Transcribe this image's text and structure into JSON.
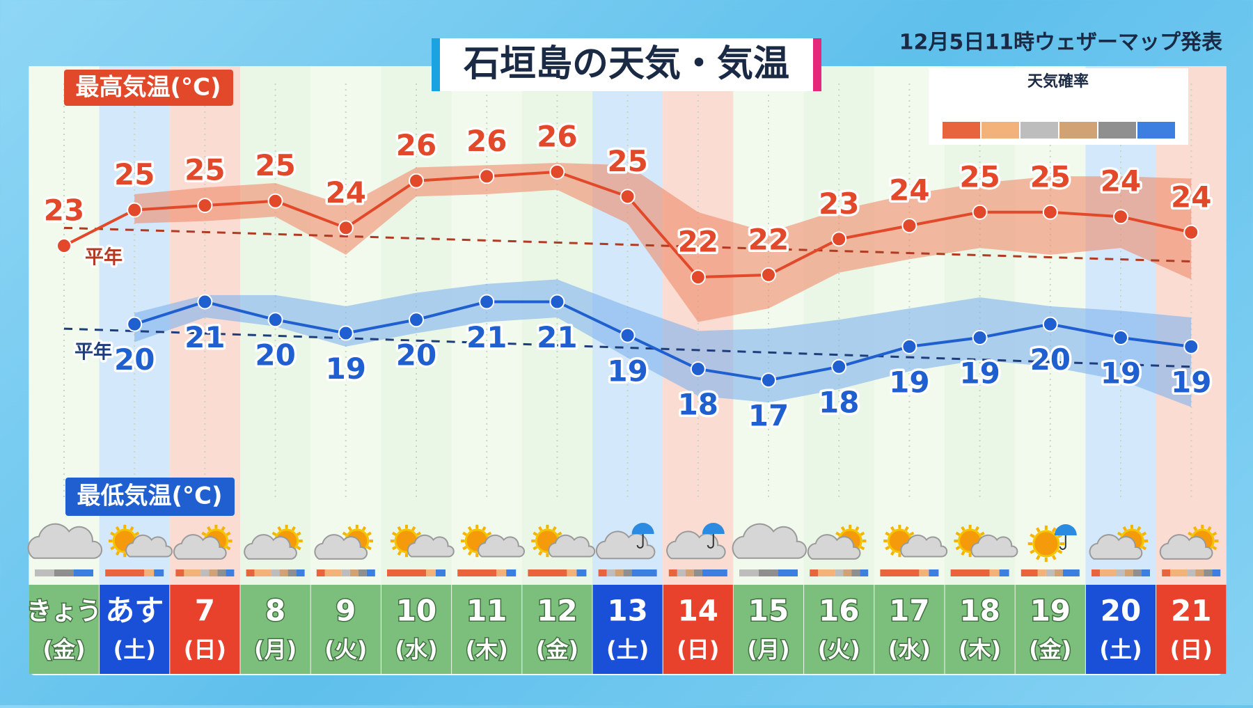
{
  "chart_data": {
    "type": "line",
    "title": "石垣島の天気・気温",
    "issued": "12月5日11時ウェザーマップ発表",
    "categories": [
      "きょう",
      "あす",
      "7",
      "8",
      "9",
      "10",
      "11",
      "12",
      "13",
      "14",
      "15",
      "16",
      "17",
      "18",
      "19",
      "20",
      "21"
    ],
    "weekdays": [
      "(金)",
      "(土)",
      "(日)",
      "(月)",
      "(火)",
      "(水)",
      "(木)",
      "(金)",
      "(土)",
      "(日)",
      "(月)",
      "(火)",
      "(水)",
      "(木)",
      "(金)",
      "(土)",
      "(日)"
    ],
    "ylim": [
      12,
      29
    ],
    "series": [
      {
        "name": "最高気温(°C)",
        "color": "#e2492a",
        "band_color": "#f08a6a",
        "normal_color": "#b03a22",
        "values": [
          23.0,
          24.6,
          24.8,
          25.0,
          23.8,
          25.9,
          26.1,
          26.3,
          25.2,
          21.6,
          21.7,
          23.3,
          23.9,
          24.5,
          24.5,
          24.3,
          23.6
        ],
        "value_labels": [
          "23",
          "25",
          "25",
          "25",
          "24",
          "26",
          "26",
          "26",
          "25",
          "22",
          "22",
          "23",
          "24",
          "25",
          "25",
          "24",
          "24"
        ],
        "band_upper": [
          null,
          25.3,
          25.6,
          25.8,
          24.8,
          26.5,
          26.6,
          26.7,
          26.6,
          24.5,
          23.6,
          24.6,
          25.3,
          25.8,
          26.1,
          26.1,
          26.0
        ],
        "band_lower": [
          null,
          24.0,
          24.1,
          24.3,
          22.6,
          25.2,
          25.3,
          25.5,
          24.0,
          19.6,
          20.2,
          21.8,
          22.4,
          22.9,
          22.6,
          22.9,
          21.5
        ],
        "normal": [
          23.8,
          22.3
        ],
        "normal_label": "平年"
      },
      {
        "name": "最低気温(°C)",
        "color": "#1f5fcf",
        "band_color": "#7fb2ee",
        "normal_color": "#1f3d7a",
        "values": [
          null,
          19.5,
          20.5,
          19.7,
          19.1,
          19.7,
          20.5,
          20.5,
          19.0,
          17.5,
          17.0,
          17.6,
          18.5,
          18.9,
          19.5,
          18.9,
          18.5
        ],
        "value_labels": [
          null,
          "20",
          "21",
          "20",
          "19",
          "20",
          "21",
          "21",
          "19",
          "18",
          "17",
          "18",
          "19",
          "19",
          "20",
          "19",
          "19"
        ],
        "band_upper": [
          null,
          20.0,
          20.8,
          20.8,
          20.3,
          20.9,
          21.3,
          21.5,
          20.3,
          19.2,
          19.3,
          19.7,
          20.2,
          20.7,
          20.3,
          20.1,
          19.8
        ],
        "band_lower": [
          null,
          18.7,
          19.8,
          19.4,
          18.5,
          19.1,
          19.6,
          19.8,
          18.0,
          16.3,
          16.0,
          16.6,
          17.4,
          17.9,
          17.6,
          17.0,
          15.8
        ],
        "normal": [
          19.3,
          17.6
        ],
        "normal_label": "平年"
      }
    ],
    "legend": {
      "title": "天気確率",
      "colors": [
        "#e8643c",
        "#f2b27a",
        "#bdbdbd",
        "#d1a273",
        "#8f8f8f",
        "#3d7fe0"
      ]
    }
  }
}
